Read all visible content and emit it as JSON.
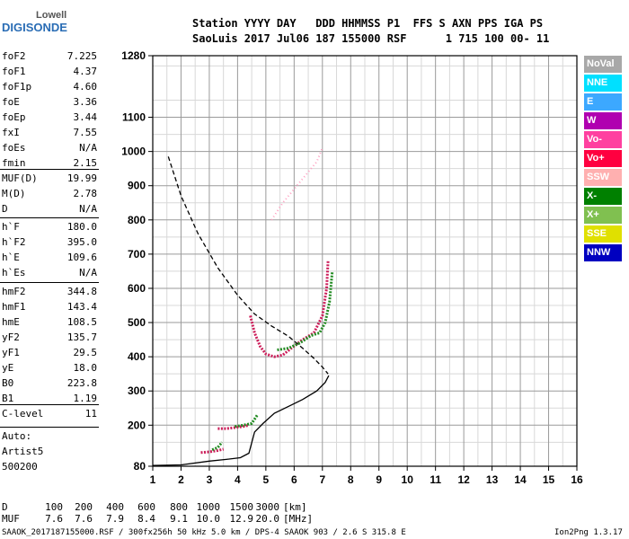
{
  "logo": {
    "top": "Lowell",
    "bottom": "DIGISONDE"
  },
  "header": {
    "line1": "Station YYYY DAY   DDD HHMMSS P1  FFS S AXN PPS IGA PS",
    "line2": "SaoLuis 2017 Jul06 187 155000 RSF      1 715 100 00- 11"
  },
  "params_group1": [
    {
      "label": "foF2",
      "value": "7.225"
    },
    {
      "label": "foF1",
      "value": "4.37"
    },
    {
      "label": "foF1p",
      "value": "4.60"
    },
    {
      "label": "foE",
      "value": "3.36"
    },
    {
      "label": "foEp",
      "value": "3.44"
    },
    {
      "label": "fxI",
      "value": "7.55"
    },
    {
      "label": "foEs",
      "value": "N/A"
    },
    {
      "label": "fmin",
      "value": "2.15"
    }
  ],
  "params_group2": [
    {
      "label": "MUF(D)",
      "value": "19.99"
    },
    {
      "label": "M(D)",
      "value": "2.78"
    },
    {
      "label": "D",
      "value": "N/A"
    }
  ],
  "params_group3": [
    {
      "label": "h`F",
      "value": "180.0"
    },
    {
      "label": "h`F2",
      "value": "395.0"
    },
    {
      "label": "h`E",
      "value": "109.6"
    },
    {
      "label": "h`Es",
      "value": "N/A"
    }
  ],
  "params_group4": [
    {
      "label": "hmF2",
      "value": "344.8"
    },
    {
      "label": "hmF1",
      "value": "143.4"
    },
    {
      "label": "hmE",
      "value": "108.5"
    },
    {
      "label": "yF2",
      "value": "135.7"
    },
    {
      "label": "yF1",
      "value": "29.5"
    },
    {
      "label": "yE",
      "value": "18.0"
    },
    {
      "label": "B0",
      "value": "223.8"
    },
    {
      "label": "B1",
      "value": "1.19"
    }
  ],
  "params_group5": [
    {
      "label": "C-level",
      "value": "11"
    }
  ],
  "autoscaling": {
    "line1": "Auto:",
    "line2": "Artist5",
    "line3": "500200"
  },
  "legend": [
    {
      "label": "NoVal",
      "color": "#a8a8a8"
    },
    {
      "label": "NNE",
      "color": "#00e0ff"
    },
    {
      "label": "E",
      "color": "#3ca8ff"
    },
    {
      "label": "W",
      "color": "#b000b0"
    },
    {
      "label": "Vo-",
      "color": "#ff40a0"
    },
    {
      "label": "Vo+",
      "color": "#ff0040"
    },
    {
      "label": "SSW",
      "color": "#ffb0b0"
    },
    {
      "label": "X-",
      "color": "#008000"
    },
    {
      "label": "X+",
      "color": "#80c050"
    },
    {
      "label": "SSE",
      "color": "#e0e000"
    },
    {
      "label": "NNW",
      "color": "#0000c0"
    }
  ],
  "muf_table": {
    "d_label": "D",
    "d_values": [
      "100",
      "200",
      "400",
      "600",
      "800",
      "1000",
      "1500",
      "3000"
    ],
    "d_unit": "[km]",
    "muf_label": "MUF",
    "muf_values": [
      "7.6",
      "7.6",
      "7.9",
      "8.4",
      "9.1",
      "10.0",
      "12.9",
      "20.0"
    ],
    "muf_unit": "[MHz]"
  },
  "footer": {
    "left": "SAAOK_2017187155000.RSF / 300fx256h 50 kHz 5.0 km / DPS-4 SAAOK 903 / 2.6 S 315.8 E",
    "right": "Ion2Png 1.3.17"
  },
  "chart_data": {
    "type": "scatter",
    "title": "",
    "xlabel": "",
    "ylabel": "",
    "xlim": [
      1,
      16
    ],
    "ylim": [
      80,
      1280
    ],
    "x_ticks": [
      1,
      2,
      3,
      4,
      5,
      6,
      7,
      8,
      9,
      10,
      11,
      12,
      13,
      14,
      15,
      16
    ],
    "y_ticks": [
      80,
      200,
      300,
      400,
      500,
      600,
      700,
      800,
      900,
      1000,
      1100,
      1280
    ],
    "grid": true,
    "series": [
      {
        "style": "solid",
        "points": [
          [
            1.0,
            82
          ],
          [
            2.0,
            84
          ],
          [
            3.0,
            95
          ],
          [
            3.6,
            100
          ],
          [
            4.1,
            105
          ],
          [
            4.4,
            118
          ],
          [
            4.6,
            180
          ],
          [
            4.9,
            205
          ],
          [
            5.3,
            235
          ],
          [
            5.8,
            255
          ],
          [
            6.3,
            275
          ],
          [
            6.8,
            300
          ],
          [
            7.1,
            325
          ],
          [
            7.225,
            345
          ]
        ]
      },
      {
        "style": "dashed",
        "points": [
          [
            1.55,
            985
          ],
          [
            2.0,
            870
          ],
          [
            2.6,
            760
          ],
          [
            3.3,
            660
          ],
          [
            4.0,
            580
          ],
          [
            4.6,
            525
          ],
          [
            5.2,
            490
          ],
          [
            5.8,
            460
          ],
          [
            6.3,
            425
          ],
          [
            6.7,
            395
          ],
          [
            7.0,
            370
          ],
          [
            7.2,
            350
          ]
        ]
      },
      {
        "style": "trace",
        "color": "#cc1e5a",
        "points": [
          [
            4.45,
            520
          ],
          [
            4.6,
            470
          ],
          [
            4.8,
            430
          ],
          [
            5.0,
            408
          ],
          [
            5.3,
            400
          ],
          [
            5.6,
            405
          ],
          [
            5.9,
            425
          ],
          [
            6.3,
            450
          ],
          [
            6.7,
            470
          ],
          [
            7.0,
            520
          ],
          [
            7.15,
            600
          ],
          [
            7.2,
            680
          ]
        ]
      },
      {
        "style": "trace",
        "color": "#228b22",
        "points": [
          [
            5.4,
            420
          ],
          [
            5.8,
            425
          ],
          [
            6.2,
            440
          ],
          [
            6.6,
            462
          ],
          [
            6.9,
            470
          ],
          [
            7.1,
            500
          ],
          [
            7.25,
            560
          ],
          [
            7.35,
            650
          ]
        ]
      },
      {
        "style": "trace",
        "color": "#cc1e5a",
        "points": [
          [
            3.3,
            190
          ],
          [
            3.6,
            190
          ],
          [
            3.9,
            193
          ],
          [
            4.2,
            196
          ],
          [
            4.4,
            200
          ]
        ]
      },
      {
        "style": "trace",
        "color": "#228b22",
        "points": [
          [
            3.9,
            196
          ],
          [
            4.2,
            200
          ],
          [
            4.5,
            205
          ],
          [
            4.7,
            230
          ]
        ]
      },
      {
        "style": "trace",
        "color": "#cc1e5a",
        "points": [
          [
            2.7,
            120
          ],
          [
            3.0,
            122
          ],
          [
            3.3,
            126
          ],
          [
            3.5,
            130
          ]
        ]
      },
      {
        "style": "trace",
        "color": "#228b22",
        "points": [
          [
            3.1,
            128
          ],
          [
            3.3,
            135
          ],
          [
            3.45,
            150
          ]
        ]
      },
      {
        "style": "dotted",
        "color": "#ff9dbf",
        "points": [
          [
            5.2,
            800
          ],
          [
            5.6,
            850
          ],
          [
            6.0,
            890
          ],
          [
            6.4,
            930
          ],
          [
            6.8,
            970
          ],
          [
            7.0,
            1010
          ]
        ]
      }
    ]
  }
}
